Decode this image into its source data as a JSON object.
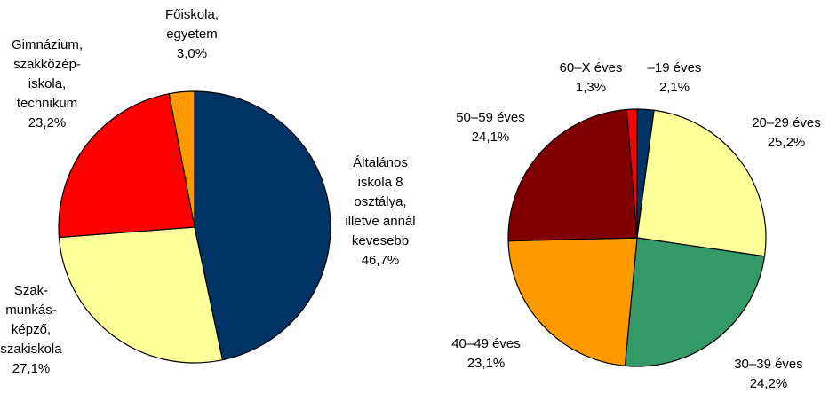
{
  "chart_data": [
    {
      "type": "pie",
      "title": "",
      "slices": [
        {
          "label": [
            "Általános",
            "iskola 8",
            "osztálya,",
            "illetve annál",
            "kevesebb"
          ],
          "value_text": "46,7%",
          "value": 46.7,
          "color": "#003366"
        },
        {
          "label": [
            "Szak-",
            "munkás-",
            "képző,",
            "szakiskola"
          ],
          "value_text": "27,1%",
          "value": 27.1,
          "color": "#FFFF99"
        },
        {
          "label": [
            "Gimnázium,",
            "szakközép-",
            "iskola,",
            "technikum"
          ],
          "value_text": "23,2%",
          "value": 23.2,
          "color": "#FF0000"
        },
        {
          "label": [
            "Főiskola,",
            "egyetem"
          ],
          "value_text": "3,0%",
          "value": 3.0,
          "color": "#FF9900"
        }
      ]
    },
    {
      "type": "pie",
      "title": "",
      "slices": [
        {
          "label": [
            "–19 éves"
          ],
          "value_text": "2,1%",
          "value": 2.1,
          "color": "#003366"
        },
        {
          "label": [
            "20–29 éves"
          ],
          "value_text": "25,2%",
          "value": 25.2,
          "color": "#FFFF99"
        },
        {
          "label": [
            "30–39 éves"
          ],
          "value_text": "24,2%",
          "value": 24.2,
          "color": "#339966"
        },
        {
          "label": [
            "40–49 éves"
          ],
          "value_text": "23,1%",
          "value": 23.1,
          "color": "#FF9900"
        },
        {
          "label": [
            "50–59 éves"
          ],
          "value_text": "24,1%",
          "value": 24.1,
          "color": "#800000"
        },
        {
          "label": [
            "60–X éves"
          ],
          "value_text": "1,3%",
          "value": 1.3,
          "color": "#FF0000"
        }
      ]
    }
  ]
}
